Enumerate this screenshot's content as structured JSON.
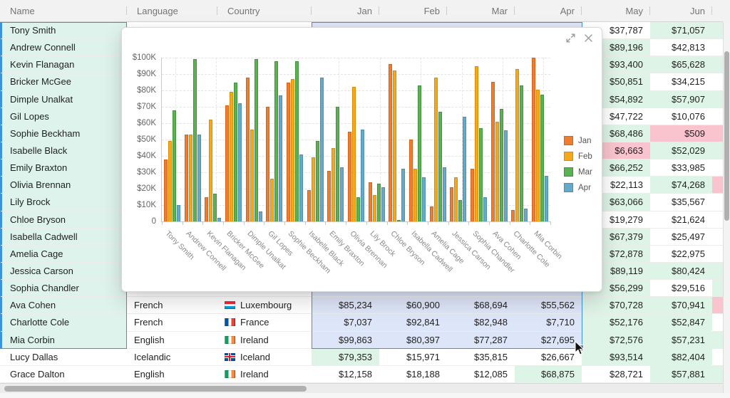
{
  "colors": {
    "accent_blue": "#3d93d8",
    "range_fill": "#dde5f8",
    "selected_row_green": "#def3ec",
    "positive_cell_green": "#def4e6",
    "negative_cell_pink": "#f9c4ce",
    "header_bg": "#f2f2f2"
  },
  "header": {
    "columns": [
      {
        "label": "Name",
        "align": "left"
      },
      {
        "label": "Language",
        "align": "left"
      },
      {
        "label": "Country",
        "align": "left"
      },
      {
        "label": "Jan",
        "align": "right"
      },
      {
        "label": "Feb",
        "align": "right"
      },
      {
        "label": "Mar",
        "align": "right"
      },
      {
        "label": "Apr",
        "align": "right"
      },
      {
        "label": "May",
        "align": "right"
      },
      {
        "label": "Jun",
        "align": "right"
      },
      {
        "label": "",
        "align": "right"
      }
    ]
  },
  "rows": [
    {
      "name": "Tony Smith",
      "selected": true,
      "language": "",
      "country": "",
      "flag": "",
      "months": [
        {
          "v": "",
          "t": "r"
        },
        {
          "v": "",
          "t": "r"
        },
        {
          "v": "",
          "t": "r"
        },
        {
          "v": "",
          "t": "r"
        },
        {
          "v": "$37,787",
          "t": "w"
        },
        {
          "v": "$71,057",
          "t": "g"
        }
      ],
      "overflow": "g"
    },
    {
      "name": "Andrew Connell",
      "selected": true,
      "language": "",
      "country": "",
      "flag": "",
      "months": [
        {
          "v": "",
          "t": "r"
        },
        {
          "v": "",
          "t": "r"
        },
        {
          "v": "",
          "t": "r"
        },
        {
          "v": "",
          "t": "r"
        },
        {
          "v": "$89,196",
          "t": "g"
        },
        {
          "v": "$42,813",
          "t": "w"
        }
      ],
      "overflow": "w"
    },
    {
      "name": "Kevin Flanagan",
      "selected": true,
      "language": "",
      "country": "",
      "flag": "",
      "months": [
        {
          "v": "",
          "t": "r"
        },
        {
          "v": "",
          "t": "r"
        },
        {
          "v": "",
          "t": "r"
        },
        {
          "v": "",
          "t": "r"
        },
        {
          "v": "$93,400",
          "t": "g"
        },
        {
          "v": "$65,628",
          "t": "g"
        }
      ],
      "overflow": "g"
    },
    {
      "name": "Bricker McGee",
      "selected": true,
      "language": "",
      "country": "",
      "flag": "",
      "months": [
        {
          "v": "",
          "t": "r"
        },
        {
          "v": "",
          "t": "r"
        },
        {
          "v": "",
          "t": "r"
        },
        {
          "v": "",
          "t": "r"
        },
        {
          "v": "$50,851",
          "t": "g"
        },
        {
          "v": "$34,215",
          "t": "w"
        }
      ],
      "overflow": "w"
    },
    {
      "name": "Dimple Unalkat",
      "selected": true,
      "language": "",
      "country": "",
      "flag": "",
      "months": [
        {
          "v": "",
          "t": "r"
        },
        {
          "v": "",
          "t": "r"
        },
        {
          "v": "",
          "t": "r"
        },
        {
          "v": "",
          "t": "r"
        },
        {
          "v": "$54,892",
          "t": "g"
        },
        {
          "v": "$57,907",
          "t": "g"
        }
      ],
      "overflow": "g"
    },
    {
      "name": "Gil Lopes",
      "selected": true,
      "language": "",
      "country": "",
      "flag": "",
      "months": [
        {
          "v": "",
          "t": "r"
        },
        {
          "v": "",
          "t": "r"
        },
        {
          "v": "",
          "t": "r"
        },
        {
          "v": "",
          "t": "r"
        },
        {
          "v": "$47,722",
          "t": "w"
        },
        {
          "v": "$10,076",
          "t": "w"
        }
      ],
      "overflow": "w"
    },
    {
      "name": "Sophie Beckham",
      "selected": true,
      "language": "",
      "country": "",
      "flag": "",
      "months": [
        {
          "v": "",
          "t": "r"
        },
        {
          "v": "",
          "t": "r"
        },
        {
          "v": "",
          "t": "r"
        },
        {
          "v": "",
          "t": "r"
        },
        {
          "v": "$68,486",
          "t": "g"
        },
        {
          "v": "$509",
          "t": "p"
        }
      ],
      "overflow": "p"
    },
    {
      "name": "Isabelle Black",
      "selected": true,
      "language": "",
      "country": "",
      "flag": "",
      "months": [
        {
          "v": "",
          "t": "r"
        },
        {
          "v": "",
          "t": "r"
        },
        {
          "v": "",
          "t": "r"
        },
        {
          "v": "",
          "t": "r"
        },
        {
          "v": "$6,663",
          "t": "p"
        },
        {
          "v": "$52,029",
          "t": "g"
        }
      ],
      "overflow": "g"
    },
    {
      "name": "Emily Braxton",
      "selected": true,
      "language": "",
      "country": "",
      "flag": "",
      "months": [
        {
          "v": "",
          "t": "r"
        },
        {
          "v": "",
          "t": "r"
        },
        {
          "v": "",
          "t": "r"
        },
        {
          "v": "",
          "t": "r"
        },
        {
          "v": "$66,252",
          "t": "g"
        },
        {
          "v": "$33,985",
          "t": "w"
        }
      ],
      "overflow": "w"
    },
    {
      "name": "Olivia Brennan",
      "selected": true,
      "language": "",
      "country": "",
      "flag": "",
      "months": [
        {
          "v": "",
          "t": "r"
        },
        {
          "v": "",
          "t": "r"
        },
        {
          "v": "",
          "t": "r"
        },
        {
          "v": "",
          "t": "r"
        },
        {
          "v": "$22,113",
          "t": "w"
        },
        {
          "v": "$74,268",
          "t": "g"
        }
      ],
      "overflow": "p"
    },
    {
      "name": "Lily Brock",
      "selected": true,
      "language": "",
      "country": "",
      "flag": "",
      "months": [
        {
          "v": "",
          "t": "r"
        },
        {
          "v": "",
          "t": "r"
        },
        {
          "v": "",
          "t": "r"
        },
        {
          "v": "",
          "t": "r"
        },
        {
          "v": "$63,066",
          "t": "g"
        },
        {
          "v": "$35,567",
          "t": "w"
        }
      ],
      "overflow": "w"
    },
    {
      "name": "Chloe Bryson",
      "selected": true,
      "language": "",
      "country": "",
      "flag": "",
      "months": [
        {
          "v": "",
          "t": "r"
        },
        {
          "v": "",
          "t": "r"
        },
        {
          "v": "",
          "t": "r"
        },
        {
          "v": "",
          "t": "r"
        },
        {
          "v": "$19,279",
          "t": "w"
        },
        {
          "v": "$21,624",
          "t": "w"
        }
      ],
      "overflow": "w"
    },
    {
      "name": "Isabella Cadwell",
      "selected": true,
      "language": "",
      "country": "",
      "flag": "",
      "months": [
        {
          "v": "",
          "t": "r"
        },
        {
          "v": "",
          "t": "r"
        },
        {
          "v": "",
          "t": "r"
        },
        {
          "v": "",
          "t": "r"
        },
        {
          "v": "$67,379",
          "t": "g"
        },
        {
          "v": "$25,497",
          "t": "w"
        }
      ],
      "overflow": "w"
    },
    {
      "name": "Amelia Cage",
      "selected": true,
      "language": "",
      "country": "",
      "flag": "",
      "months": [
        {
          "v": "",
          "t": "r"
        },
        {
          "v": "",
          "t": "r"
        },
        {
          "v": "",
          "t": "r"
        },
        {
          "v": "",
          "t": "r"
        },
        {
          "v": "$72,878",
          "t": "g"
        },
        {
          "v": "$22,975",
          "t": "w"
        }
      ],
      "overflow": "w"
    },
    {
      "name": "Jessica Carson",
      "selected": true,
      "language": "",
      "country": "",
      "flag": "",
      "months": [
        {
          "v": "",
          "t": "r"
        },
        {
          "v": "",
          "t": "r"
        },
        {
          "v": "",
          "t": "r"
        },
        {
          "v": "",
          "t": "r"
        },
        {
          "v": "$89,119",
          "t": "g"
        },
        {
          "v": "$80,424",
          "t": "g"
        }
      ],
      "overflow": "g"
    },
    {
      "name": "Sophia Chandler",
      "selected": true,
      "language": "",
      "country": "",
      "flag": "",
      "months": [
        {
          "v": "",
          "t": "r"
        },
        {
          "v": "",
          "t": "r"
        },
        {
          "v": "",
          "t": "r"
        },
        {
          "v": "",
          "t": "r"
        },
        {
          "v": "$56,299",
          "t": "g"
        },
        {
          "v": "$29,516",
          "t": "w"
        }
      ],
      "overflow": "g"
    },
    {
      "name": "Ava Cohen",
      "selected": true,
      "language": "French",
      "country": "Luxembourg",
      "flag": "flag-luxembourg",
      "months": [
        {
          "v": "$85,234",
          "t": "r"
        },
        {
          "v": "$60,900",
          "t": "r"
        },
        {
          "v": "$68,694",
          "t": "r"
        },
        {
          "v": "$55,562",
          "t": "r"
        },
        {
          "v": "$70,728",
          "t": "g"
        },
        {
          "v": "$70,941",
          "t": "g"
        }
      ],
      "overflow": "p"
    },
    {
      "name": "Charlotte Cole",
      "selected": true,
      "language": "French",
      "country": "France",
      "flag": "flag-france",
      "months": [
        {
          "v": "$7,037",
          "t": "r"
        },
        {
          "v": "$92,841",
          "t": "r"
        },
        {
          "v": "$82,948",
          "t": "r"
        },
        {
          "v": "$7,710",
          "t": "r"
        },
        {
          "v": "$52,176",
          "t": "g"
        },
        {
          "v": "$52,847",
          "t": "g"
        }
      ],
      "overflow": "w"
    },
    {
      "name": "Mia Corbin",
      "selected": true,
      "language": "English",
      "country": "Ireland",
      "flag": "flag-ireland",
      "months": [
        {
          "v": "$99,863",
          "t": "r"
        },
        {
          "v": "$80,397",
          "t": "r"
        },
        {
          "v": "$77,287",
          "t": "r"
        },
        {
          "v": "$27,695",
          "t": "r"
        },
        {
          "v": "$72,576",
          "t": "g"
        },
        {
          "v": "$57,231",
          "t": "g"
        }
      ],
      "overflow": "g"
    },
    {
      "name": "Lucy Dallas",
      "selected": false,
      "language": "Icelandic",
      "country": "Iceland",
      "flag": "flag-iceland",
      "months": [
        {
          "v": "$79,353",
          "t": "g"
        },
        {
          "v": "$15,971",
          "t": "w"
        },
        {
          "v": "$35,815",
          "t": "w"
        },
        {
          "v": "$26,667",
          "t": "w"
        },
        {
          "v": "$93,514",
          "t": "g"
        },
        {
          "v": "$82,404",
          "t": "g"
        }
      ],
      "overflow": "w"
    },
    {
      "name": "Grace Dalton",
      "selected": false,
      "language": "English",
      "country": "Ireland",
      "flag": "flag-ireland",
      "months": [
        {
          "v": "$12,158",
          "t": "w"
        },
        {
          "v": "$18,188",
          "t": "w"
        },
        {
          "v": "$12,085",
          "t": "w"
        },
        {
          "v": "$68,875",
          "t": "g"
        },
        {
          "v": "$28,721",
          "t": "w"
        },
        {
          "v": "$57,881",
          "t": "g"
        }
      ],
      "overflow": "g"
    }
  ],
  "chart_window": {
    "expand_icon": "expand-icon",
    "close_icon": "close-icon"
  },
  "chart_data": {
    "type": "bar",
    "title": "",
    "xlabel": "",
    "ylabel": "",
    "ylim": [
      0,
      100000
    ],
    "grid": "dashed",
    "legend_position": "right",
    "x_label_rotation": 45,
    "y_ticks": [
      "$100K",
      "$90K",
      "$80K",
      "$70K",
      "$60K",
      "$50K",
      "$40K",
      "$30K",
      "$20K",
      "$10K",
      "0"
    ],
    "categories": [
      "Tony Smith",
      "Andrew Connell",
      "Kevin Flanagan",
      "Bricker McGee",
      "Dimple Unalkat",
      "Gil Lopes",
      "Sophie Beckham",
      "Isabelle Black",
      "Emily Braxton",
      "Olivia Brennan",
      "Lily Brock",
      "Chloe Bryson",
      "Isabella Cadwell",
      "Amelia Cage",
      "Jessica Carson",
      "Sophia Chandler",
      "Ava Cohen",
      "Charlotte Cole",
      "Mia Corbin"
    ],
    "series": [
      {
        "name": "Jan",
        "color": "#ee7d2f",
        "stroke": "#d3641c",
        "values": [
          38000,
          53000,
          15000,
          71000,
          88000,
          70000,
          85000,
          19000,
          31000,
          55000,
          24000,
          96000,
          50000,
          9000,
          21000,
          32000,
          85234,
          7037,
          99863
        ]
      },
      {
        "name": "Feb",
        "color": "#f6a81c",
        "stroke": "#d98d07",
        "values": [
          49000,
          53000,
          62000,
          79000,
          56000,
          26000,
          87000,
          39000,
          45000,
          82000,
          16000,
          92000,
          32000,
          88000,
          27000,
          95000,
          60900,
          92841,
          80397
        ]
      },
      {
        "name": "Mar",
        "color": "#5cb153",
        "stroke": "#44923d",
        "values": [
          68000,
          99000,
          17000,
          85000,
          99000,
          98000,
          98000,
          49000,
          70000,
          15000,
          23000,
          1000,
          83000,
          67000,
          13000,
          57000,
          68694,
          82948,
          77287
        ]
      },
      {
        "name": "Apr",
        "color": "#65aac8",
        "stroke": "#4e8fae",
        "values": [
          10000,
          53000,
          2000,
          72000,
          6000,
          77000,
          41000,
          88000,
          33000,
          56000,
          21000,
          32000,
          27000,
          33000,
          64000,
          15000,
          55562,
          7710,
          27695
        ]
      }
    ]
  }
}
